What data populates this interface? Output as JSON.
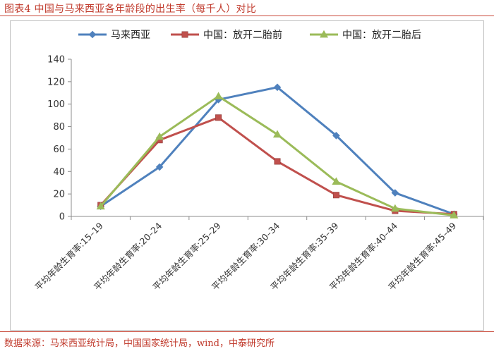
{
  "figure": {
    "title": "图表4 中国与马来西亚各年龄段的出生率（每千人）对比",
    "source": "数据来源：马来西亚统计局，中国国家统计局，wind，中泰研究所"
  },
  "chart_data": {
    "type": "line",
    "categories": [
      "平均年龄生育率:15–19",
      "平均年龄生育率:20–24",
      "平均年龄生育率:25–29",
      "平均年龄生育率:30–34",
      "平均年龄生育率:35–39",
      "平均年龄生育率:40–44",
      "平均年龄生育率:45–49"
    ],
    "series": [
      {
        "name": "马来西亚",
        "color": "#4f81bd",
        "marker": "diamond",
        "values": [
          9,
          44,
          104,
          115,
          72,
          21,
          2
        ]
      },
      {
        "name": "中国：放开二胎前",
        "color": "#c0504d",
        "marker": "square",
        "values": [
          10,
          68,
          88,
          49,
          19,
          5,
          2
        ]
      },
      {
        "name": "中国：放开二胎后",
        "color": "#9bbb59",
        "marker": "triangle",
        "values": [
          9,
          71,
          107,
          73,
          31,
          7,
          1
        ]
      }
    ],
    "ylim": [
      0,
      140
    ],
    "yticks": [
      0,
      20,
      40,
      60,
      80,
      100,
      120,
      140
    ],
    "legend_position": "top",
    "grid": false
  }
}
